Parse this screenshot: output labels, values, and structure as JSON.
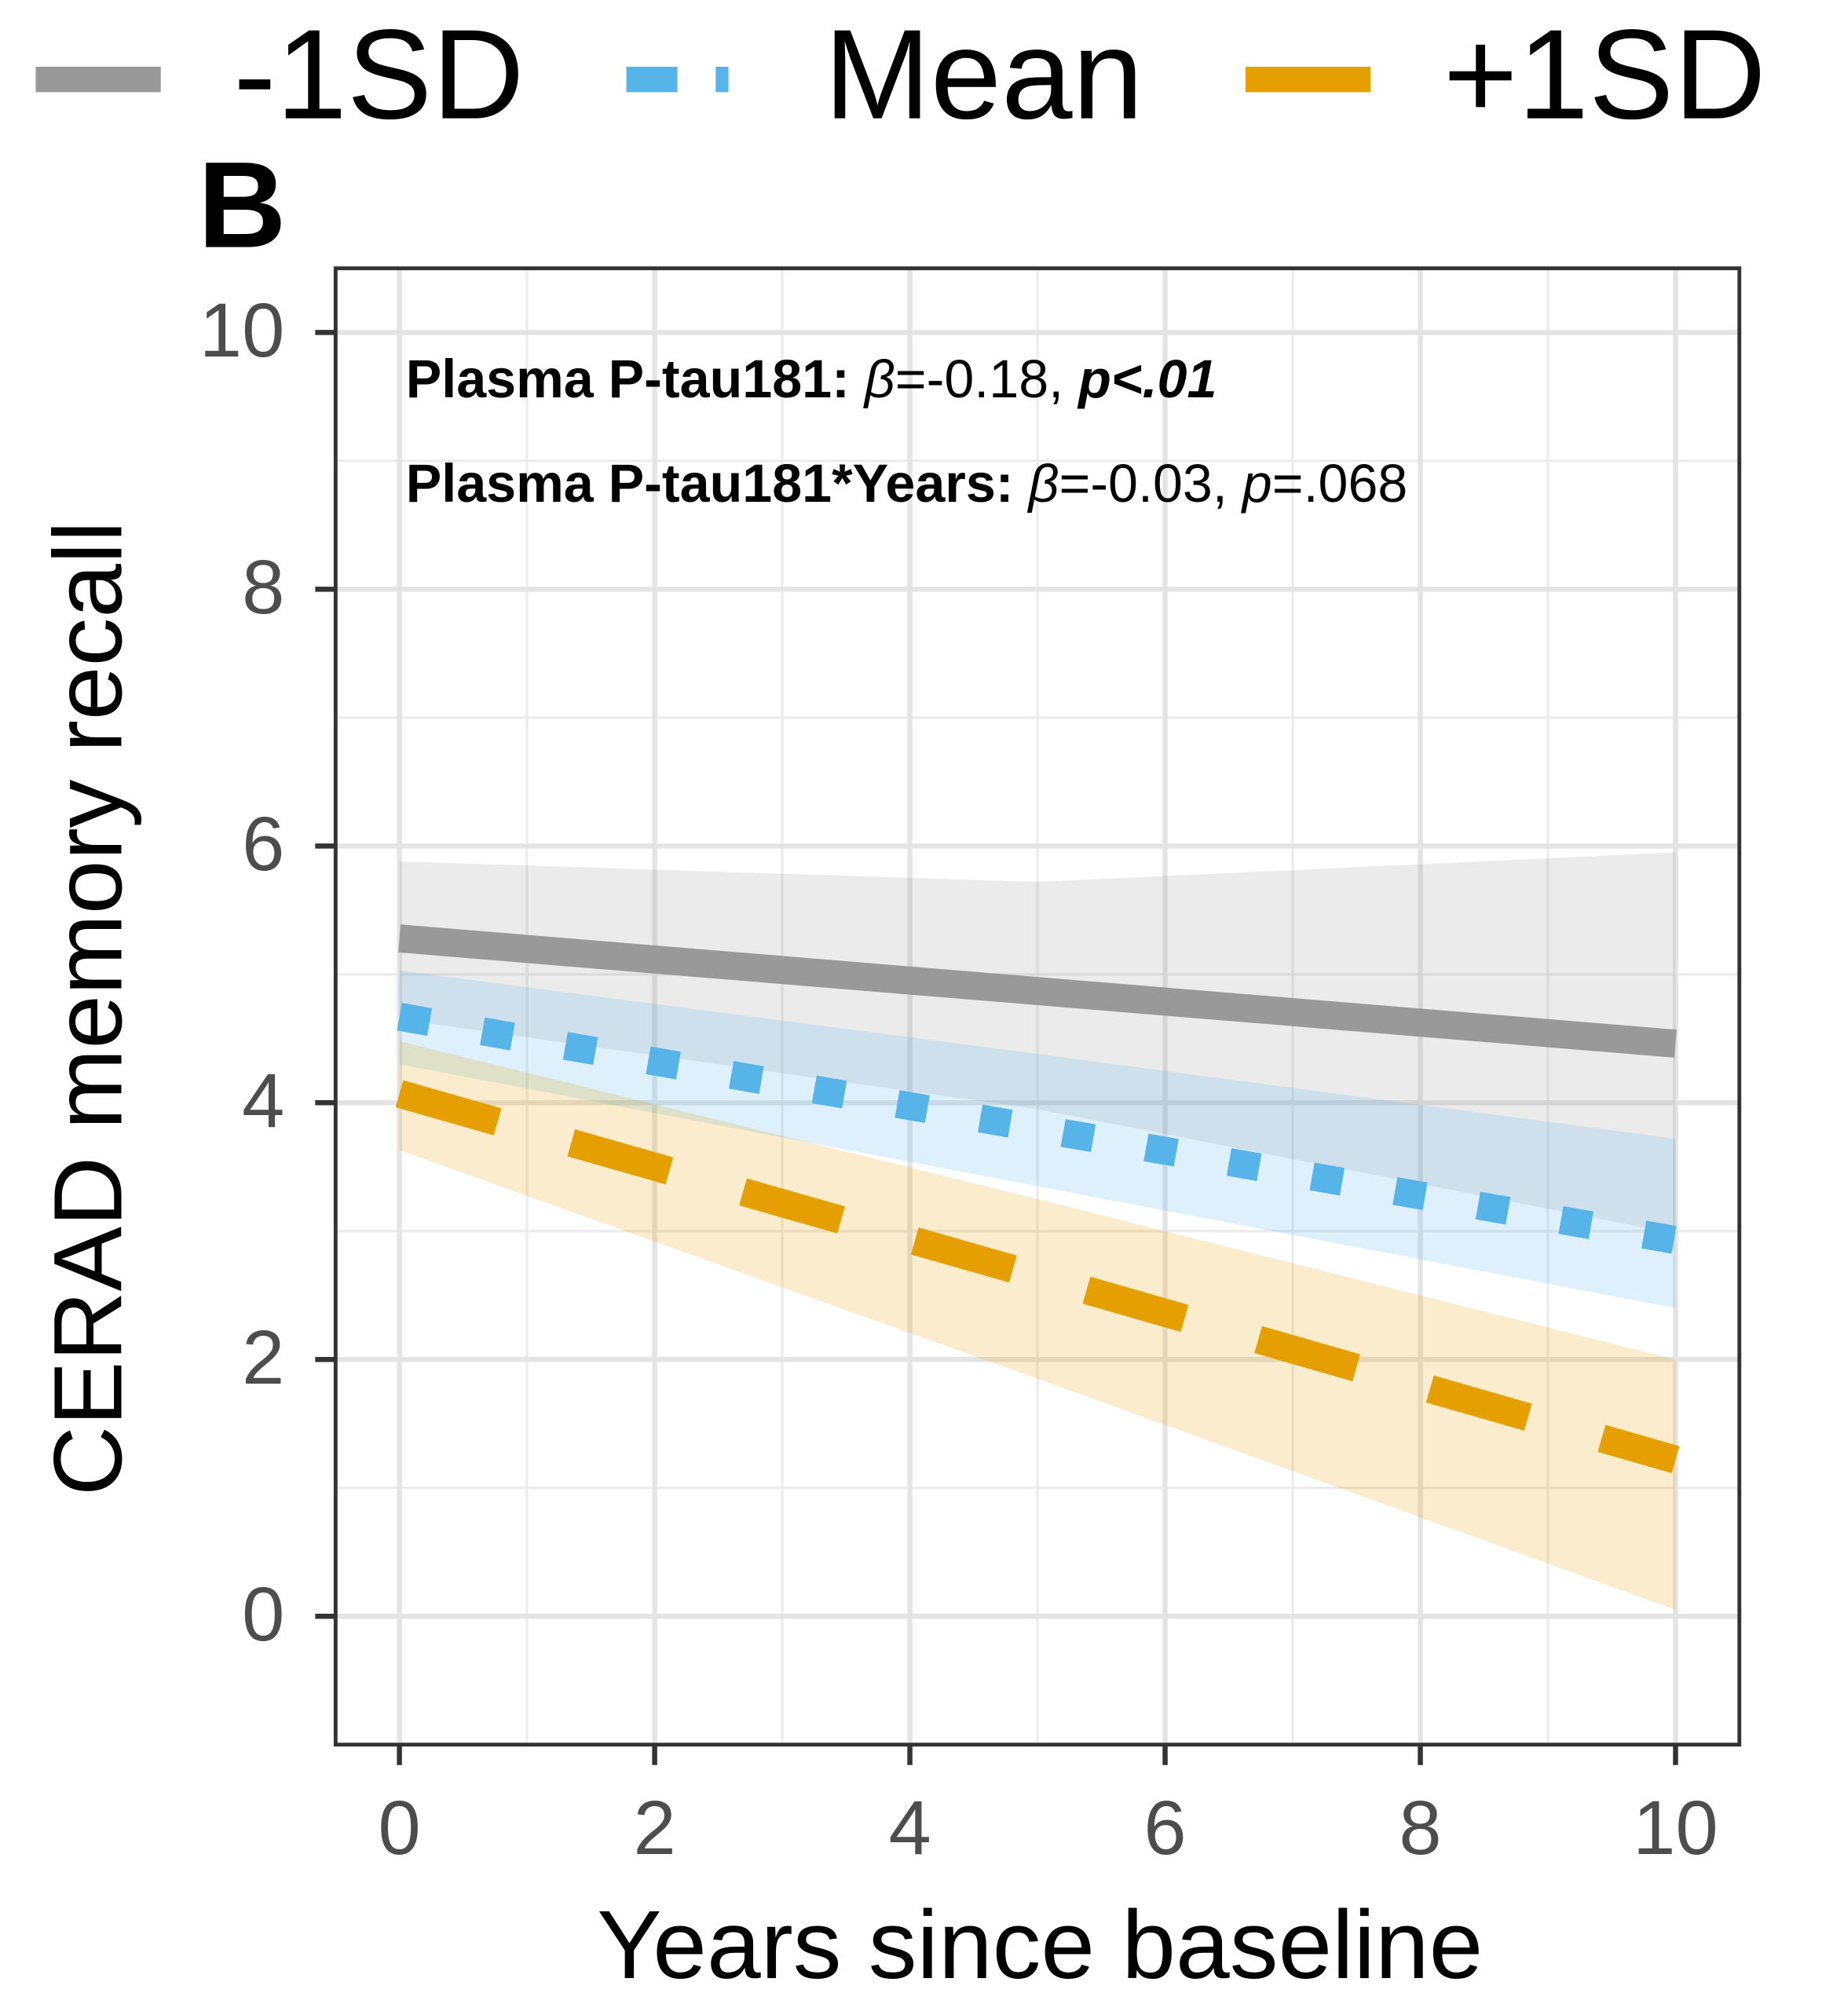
{
  "chart_data": {
    "type": "line",
    "panel_label": "B",
    "x_label": "Years since baseline",
    "y_label": "CERAD memory recall",
    "annotations": [
      [
        {
          "text": "Plasma P-tau181: ",
          "style": "bold"
        },
        {
          "text": "β",
          "style": "italic"
        },
        {
          "text": "=-0.18, ",
          "style": "normal"
        },
        {
          "text": "p<.01",
          "style": "bold-italic"
        }
      ],
      [
        {
          "text": "Plasma P-tau181*Years: ",
          "style": "bold"
        },
        {
          "text": "β",
          "style": "italic"
        },
        {
          "text": "=-0.03, ",
          "style": "normal"
        },
        {
          "text": "p",
          "style": "italic"
        },
        {
          "text": "=.068",
          "style": "normal"
        }
      ]
    ],
    "series": [
      {
        "name": "-1SD",
        "color": "#999999",
        "dash": "solid",
        "x": [
          0,
          5,
          10
        ],
        "values": [
          5.28,
          4.87,
          4.46
        ],
        "lower": [
          4.65,
          3.95,
          2.98
        ],
        "upper": [
          5.88,
          5.72,
          5.95
        ]
      },
      {
        "name": "Mean",
        "color": "#56B4E9",
        "dash": "dotted",
        "x": [
          0,
          5,
          10
        ],
        "values": [
          4.67,
          3.8,
          2.93
        ],
        "lower": [
          4.3,
          3.35,
          2.4
        ],
        "upper": [
          5.03,
          4.38,
          3.72
        ]
      },
      {
        "name": "+1SD",
        "color": "#E69F00",
        "dash": "dashed",
        "x": [
          0,
          5,
          10
        ],
        "values": [
          4.07,
          2.65,
          1.22
        ],
        "lower": [
          3.63,
          1.85,
          0.05
        ],
        "upper": [
          4.48,
          3.25,
          2.0
        ]
      }
    ],
    "xlim": [
      -0.5,
      10.5
    ],
    "ylim": [
      -1,
      10.5
    ],
    "xticks": [
      0,
      2,
      4,
      6,
      8,
      10
    ],
    "yticks": [
      0,
      2,
      4,
      6,
      8,
      10
    ],
    "grid": true,
    "minor_grid": true,
    "legend": "top"
  }
}
